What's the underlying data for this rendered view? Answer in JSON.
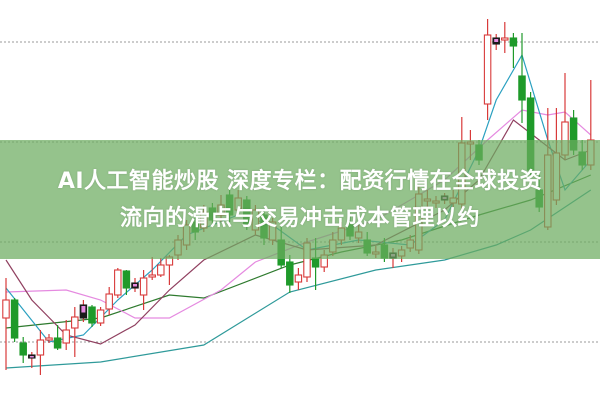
{
  "title": {
    "line1": "AI人工智能炒股 深度专栏：配资行情在全球投资",
    "line2": "流向的滑点与交易冲击成本管理以约"
  },
  "colors": {
    "up": "#d83a3a",
    "down": "#1f9a2a",
    "doji_marker": "#1a1a1a",
    "gridline": "#9a9a9a",
    "banner": "#6cac60"
  },
  "chart_data": {
    "type": "candlestick",
    "grid": "dotted horizontal",
    "ylim": [
      0,
      40
    ],
    "gridlines": [
      5.8,
      15.8,
      25.8,
      35.8
    ],
    "candles": [
      [
        8.2,
        12.2,
        3.0,
        10.0
      ],
      [
        10.0,
        10.2,
        5.8,
        6.2
      ],
      [
        5.7,
        6.3,
        3.7,
        4.5
      ],
      [
        4.2,
        4.8,
        3.2,
        4.5
      ],
      [
        4.5,
        7.0,
        2.5,
        6.0
      ],
      [
        6.0,
        6.6,
        5.7,
        6.2
      ],
      [
        6.2,
        7.5,
        5.0,
        5.2
      ],
      [
        5.7,
        8.0,
        5.0,
        7.0
      ],
      [
        7.2,
        9.3,
        4.3,
        8.3
      ],
      [
        8.2,
        10.0,
        7.8,
        9.5
      ],
      [
        9.3,
        9.5,
        7.3,
        7.7
      ],
      [
        7.7,
        9.3,
        7.4,
        9.0
      ],
      [
        9.1,
        11.3,
        8.5,
        10.6
      ],
      [
        10.5,
        13.2,
        10.2,
        13.0
      ],
      [
        12.9,
        13.0,
        10.5,
        11.2
      ],
      [
        11.2,
        12.2,
        10.8,
        11.7
      ],
      [
        10.5,
        13.0,
        9.0,
        12.2
      ],
      [
        12.3,
        14.3,
        12.0,
        12.5
      ],
      [
        12.5,
        14.2,
        12.3,
        13.5
      ],
      [
        13.5,
        14.5,
        11.5,
        14.3
      ],
      [
        14.5,
        16.5,
        14.0,
        16.0
      ],
      [
        15.5,
        18.0,
        15.0,
        17.5
      ],
      [
        17.8,
        18.8,
        16.0,
        16.8
      ],
      [
        17.2,
        19.5,
        16.8,
        18.8
      ],
      [
        19.2,
        19.7,
        17.4,
        18.0
      ],
      [
        18.5,
        20.5,
        17.8,
        19.5
      ],
      [
        20.5,
        21.0,
        17.8,
        18.5
      ],
      [
        19.0,
        21.0,
        18.5,
        20.2
      ],
      [
        20.0,
        20.4,
        17.0,
        17.5
      ],
      [
        17.0,
        19.5,
        16.5,
        19.0
      ],
      [
        18.5,
        19.0,
        15.5,
        16.2
      ],
      [
        16.0,
        18.2,
        15.5,
        17.8
      ],
      [
        16.0,
        17.5,
        13.2,
        13.5
      ],
      [
        13.8,
        14.5,
        10.7,
        11.5
      ],
      [
        11.8,
        13.2,
        11.0,
        12.5
      ],
      [
        12.3,
        16.2,
        11.8,
        15.7
      ],
      [
        14.2,
        16.2,
        11.0,
        13.3
      ],
      [
        13.3,
        15.0,
        12.8,
        14.5
      ],
      [
        14.8,
        16.8,
        14.4,
        16.0
      ],
      [
        16.0,
        17.8,
        15.5,
        17.2
      ],
      [
        17.5,
        18.5,
        16.0,
        16.4
      ],
      [
        16.2,
        17.5,
        15.7,
        16.8
      ],
      [
        16.0,
        16.8,
        14.4,
        14.7
      ],
      [
        14.6,
        15.4,
        14.2,
        14.8
      ],
      [
        15.5,
        16.2,
        13.8,
        14.2
      ],
      [
        14.2,
        15.2,
        13.2,
        14.7
      ],
      [
        14.4,
        15.4,
        13.8,
        15.0
      ],
      [
        15.2,
        16.5,
        14.8,
        16.0
      ],
      [
        15.0,
        21.4,
        14.6,
        20.6
      ],
      [
        19.9,
        21.0,
        19.0,
        20.1
      ],
      [
        19.7,
        20.4,
        19.2,
        19.9
      ],
      [
        20.0,
        20.7,
        19.6,
        20.4
      ],
      [
        19.7,
        21.0,
        19.2,
        20.2
      ],
      [
        19.6,
        28.3,
        19.0,
        25.7
      ],
      [
        25.6,
        27.0,
        24.0,
        25.8
      ],
      [
        25.5,
        26.0,
        23.5,
        24.0
      ],
      [
        29.6,
        38.1,
        28.0,
        36.5
      ],
      [
        35.6,
        36.6,
        35.0,
        36.2
      ],
      [
        36.0,
        37.8,
        34.7,
        36.2
      ],
      [
        36.2,
        36.7,
        33.2,
        35.4
      ],
      [
        32.4,
        36.7,
        27.7,
        30.0
      ],
      [
        30.2,
        30.8,
        22.5,
        23.0
      ],
      [
        21.0,
        22.5,
        18.8,
        19.3
      ],
      [
        17.3,
        29.2,
        17.0,
        24.5
      ],
      [
        20.0,
        29.2,
        19.5,
        24.7
      ],
      [
        24.5,
        32.7,
        24.0,
        27.8
      ],
      [
        28.2,
        29.0,
        24.5,
        25.0
      ],
      [
        24.8,
        26.0,
        23.0,
        23.5
      ],
      [
        23.5,
        32.0,
        23.0,
        26.0
      ]
    ],
    "markers": [
      4,
      10,
      16,
      46,
      52,
      58
    ],
    "moving_averages": [
      {
        "color": "#2f9a9a",
        "points": [
          [
            1,
            3.2
          ],
          [
            12,
            3.8
          ],
          [
            24,
            5.5
          ],
          [
            34,
            10.8
          ],
          [
            44,
            13.0
          ],
          [
            52,
            14.0
          ],
          [
            58,
            15.5
          ],
          [
            62,
            17.0
          ],
          [
            69,
            21.0
          ]
        ]
      },
      {
        "color": "#2e7a2e",
        "points": [
          [
            1,
            7.2
          ],
          [
            12,
            8.2
          ],
          [
            20,
            10.5
          ],
          [
            24,
            10.2
          ],
          [
            34,
            13.5
          ],
          [
            40,
            14.8
          ],
          [
            47,
            16.0
          ],
          [
            56,
            18.5
          ],
          [
            62,
            20.0
          ],
          [
            69,
            22.5
          ]
        ]
      },
      {
        "color": "#e58ae0",
        "points": [
          [
            1,
            10.8
          ],
          [
            8,
            11.0
          ],
          [
            12,
            10.0
          ],
          [
            16,
            8.2
          ],
          [
            20,
            8.2
          ],
          [
            26,
            11.0
          ],
          [
            30,
            13.8
          ],
          [
            36,
            15.8
          ],
          [
            44,
            18.0
          ],
          [
            52,
            22.0
          ],
          [
            57,
            26.0
          ],
          [
            61,
            29.0
          ],
          [
            64,
            28.5
          ],
          [
            66,
            28.8
          ],
          [
            69,
            26.5
          ]
        ]
      },
      {
        "color": "#2aa0c0",
        "points": [
          [
            1,
            11.2
          ],
          [
            6,
            5.8
          ],
          [
            10,
            6.5
          ],
          [
            14,
            10.0
          ],
          [
            18,
            13.0
          ],
          [
            22,
            16.5
          ],
          [
            28,
            18.5
          ],
          [
            32,
            17.5
          ],
          [
            36,
            15.0
          ],
          [
            42,
            16.0
          ],
          [
            48,
            15.5
          ],
          [
            52,
            18.0
          ],
          [
            56,
            25.0
          ],
          [
            58,
            30.0
          ],
          [
            61,
            34.5
          ],
          [
            64,
            26.0
          ],
          [
            66,
            21.0
          ],
          [
            69,
            24.0
          ]
        ]
      },
      {
        "color": "#904060",
        "points": [
          [
            1,
            14.0
          ],
          [
            4,
            10.0
          ],
          [
            8,
            6.5
          ],
          [
            12,
            5.6
          ],
          [
            16,
            7.5
          ],
          [
            20,
            11.0
          ],
          [
            24,
            14.0
          ],
          [
            30,
            16.5
          ],
          [
            36,
            15.0
          ],
          [
            44,
            15.5
          ],
          [
            52,
            19.0
          ],
          [
            56,
            22.0
          ],
          [
            60,
            28.0
          ],
          [
            63,
            26.0
          ],
          [
            66,
            24.0
          ],
          [
            69,
            25.0
          ]
        ]
      }
    ]
  }
}
